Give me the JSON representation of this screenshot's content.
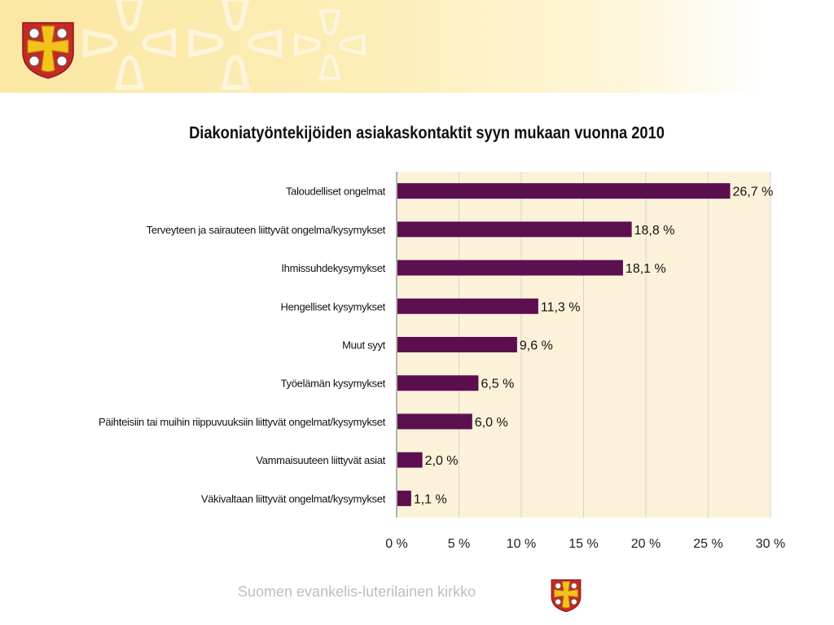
{
  "header": {
    "crest_icon": "coat-of-arms-icon",
    "background_accent": "#fbe7a3"
  },
  "chart_data": {
    "type": "bar",
    "orientation": "horizontal",
    "title": "Diakoniatyöntekijöiden asiakaskontaktit syyn mukaan vuonna 2010",
    "categories": [
      "Taloudelliset ongelmat",
      "Terveyteen ja sairauteen liittyvät ongelma/kysymykset",
      "Ihmissuhdekysymykset",
      "Hengelliset kysymykset",
      "Muut syyt",
      "Työelämän kysymykset",
      "Päihteisiin tai muihin riippuvuuksiin liittyvät ongelmat/kysymykset",
      "Vammaisuuteen liittyvät asiat",
      "Väkivaltaan liittyvät ongelmat/kysymykset"
    ],
    "values": [
      26.7,
      18.8,
      18.1,
      11.3,
      9.6,
      6.5,
      6.0,
      2.0,
      1.1
    ],
    "value_labels": [
      "26,7 %",
      "18,8 %",
      "18,1 %",
      "11,3 %",
      "9,6 %",
      "6,5 %",
      "6,0 %",
      "2,0 %",
      "1,1 %"
    ],
    "xlim": [
      0,
      30
    ],
    "x_ticks": [
      0,
      5,
      10,
      15,
      20,
      25,
      30
    ],
    "x_tick_labels": [
      "0 %",
      "5 %",
      "10 %",
      "15 %",
      "20 %",
      "25 %",
      "30 %"
    ],
    "grid": true,
    "bar_color": "#5c0f4f",
    "plot_background": "#fcf2da"
  },
  "footer": {
    "text": "Suomen evankelis-luterilainen kirkko",
    "crest_icon": "church-crest-icon"
  }
}
